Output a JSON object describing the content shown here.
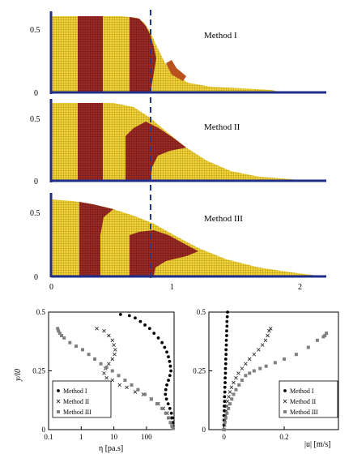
{
  "colors": {
    "yellow": "#f2d43a",
    "red": "#9c2a24",
    "axis": "#1f2d8a",
    "dash": "#1f3a8a",
    "marker": "#000000",
    "square": "#808080",
    "cross": "#333333"
  },
  "top_panels": {
    "labels": [
      "Method I",
      "Method II",
      "Method III"
    ],
    "y_ticks": [
      "0",
      "0.5"
    ],
    "x_ticks": [
      "0",
      "1",
      "2"
    ]
  },
  "chart_data": [
    {
      "type": "scatter",
      "title": "",
      "xlabel": "η [pa.s]",
      "ylabel": "y/l0",
      "xscale": "log",
      "xlim": [
        0.1,
        700
      ],
      "ylim": [
        0,
        0.5
      ],
      "x_ticks": [
        "0.1",
        "1",
        "10",
        "100"
      ],
      "y_ticks": [
        "0",
        "0.25",
        "0.5"
      ],
      "legend_position": "bottom-left",
      "series": [
        {
          "name": "Method I",
          "marker": "circle",
          "points": [
            [
              16,
              0.49
            ],
            [
              30,
              0.485
            ],
            [
              45,
              0.475
            ],
            [
              65,
              0.46
            ],
            [
              90,
              0.445
            ],
            [
              125,
              0.43
            ],
            [
              170,
              0.41
            ],
            [
              230,
              0.39
            ],
            [
              300,
              0.37
            ],
            [
              360,
              0.35
            ],
            [
              420,
              0.33
            ],
            [
              470,
              0.31
            ],
            [
              510,
              0.29
            ],
            [
              540,
              0.27
            ],
            [
              560,
              0.25
            ],
            [
              520,
              0.23
            ],
            [
              470,
              0.21
            ],
            [
              420,
              0.19
            ],
            [
              390,
              0.17
            ],
            [
              380,
              0.15
            ],
            [
              410,
              0.13
            ],
            [
              460,
              0.11
            ],
            [
              520,
              0.09
            ],
            [
              580,
              0.07
            ],
            [
              620,
              0.05
            ],
            [
              640,
              0.03
            ],
            [
              650,
              0.015
            ],
            [
              660,
              0.005
            ]
          ]
        },
        {
          "name": "Method II",
          "marker": "cross",
          "points": [
            [
              3,
              0.43
            ],
            [
              5,
              0.42
            ],
            [
              7,
              0.4
            ],
            [
              9,
              0.38
            ],
            [
              10,
              0.36
            ],
            [
              11,
              0.34
            ],
            [
              10.5,
              0.32
            ],
            [
              9,
              0.3
            ],
            [
              7,
              0.28
            ],
            [
              5.5,
              0.26
            ],
            [
              5,
              0.24
            ],
            [
              6,
              0.22
            ],
            [
              9,
              0.21
            ],
            [
              15,
              0.19
            ],
            [
              25,
              0.18
            ],
            [
              45,
              0.16
            ],
            [
              80,
              0.15
            ],
            [
              140,
              0.13
            ],
            [
              230,
              0.11
            ],
            [
              330,
              0.09
            ],
            [
              430,
              0.07
            ],
            [
              520,
              0.05
            ],
            [
              580,
              0.03
            ],
            [
              620,
              0.015
            ],
            [
              640,
              0.005
            ]
          ]
        },
        {
          "name": "Method III",
          "marker": "square",
          "points": [
            [
              0.19,
              0.43
            ],
            [
              0.2,
              0.42
            ],
            [
              0.22,
              0.41
            ],
            [
              0.25,
              0.4
            ],
            [
              0.3,
              0.39
            ],
            [
              0.45,
              0.37
            ],
            [
              0.7,
              0.355
            ],
            [
              1.1,
              0.34
            ],
            [
              1.7,
              0.32
            ],
            [
              2.6,
              0.3
            ],
            [
              4,
              0.28
            ],
            [
              6,
              0.265
            ],
            [
              9,
              0.25
            ],
            [
              14,
              0.23
            ],
            [
              22,
              0.21
            ],
            [
              35,
              0.19
            ],
            [
              55,
              0.17
            ],
            [
              90,
              0.15
            ],
            [
              140,
              0.13
            ],
            [
              210,
              0.11
            ],
            [
              300,
              0.09
            ],
            [
              390,
              0.07
            ],
            [
              470,
              0.05
            ],
            [
              540,
              0.03
            ],
            [
              600,
              0.015
            ],
            [
              650,
              0.005
            ]
          ]
        }
      ]
    },
    {
      "type": "scatter",
      "title": "",
      "xlabel": "|u| [m/s]",
      "ylabel": "",
      "xlim": [
        -0.05,
        0.38
      ],
      "ylim": [
        0,
        0.5
      ],
      "x_ticks": [
        "0",
        "0.2"
      ],
      "y_ticks": [
        "0",
        "0.25",
        "0.5"
      ],
      "legend_position": "bottom-right",
      "series": [
        {
          "name": "Method I",
          "marker": "circle",
          "points": [
            [
              0.012,
              0.5
            ],
            [
              0.011,
              0.48
            ],
            [
              0.01,
              0.46
            ],
            [
              0.01,
              0.44
            ],
            [
              0.009,
              0.42
            ],
            [
              0.009,
              0.4
            ],
            [
              0.008,
              0.38
            ],
            [
              0.008,
              0.36
            ],
            [
              0.007,
              0.34
            ],
            [
              0.007,
              0.32
            ],
            [
              0.006,
              0.3
            ],
            [
              0.006,
              0.28
            ],
            [
              0.005,
              0.26
            ],
            [
              0.005,
              0.24
            ],
            [
              0.004,
              0.22
            ],
            [
              0.004,
              0.2
            ],
            [
              0.003,
              0.18
            ],
            [
              0.003,
              0.16
            ],
            [
              0.002,
              0.14
            ],
            [
              0.002,
              0.12
            ],
            [
              0.001,
              0.1
            ],
            [
              0.001,
              0.08
            ],
            [
              0.0,
              0.06
            ],
            [
              0.0,
              0.04
            ],
            [
              0.0,
              0.02
            ],
            [
              0.0,
              0.0
            ]
          ]
        },
        {
          "name": "Method II",
          "marker": "cross",
          "points": [
            [
              0.155,
              0.43
            ],
            [
              0.15,
              0.42
            ],
            [
              0.145,
              0.4
            ],
            [
              0.138,
              0.38
            ],
            [
              0.128,
              0.36
            ],
            [
              0.115,
              0.34
            ],
            [
              0.1,
              0.32
            ],
            [
              0.085,
              0.3
            ],
            [
              0.072,
              0.28
            ],
            [
              0.06,
              0.26
            ],
            [
              0.048,
              0.24
            ],
            [
              0.04,
              0.22
            ],
            [
              0.032,
              0.2
            ],
            [
              0.025,
              0.18
            ],
            [
              0.02,
              0.16
            ],
            [
              0.016,
              0.14
            ],
            [
              0.012,
              0.12
            ],
            [
              0.01,
              0.1
            ],
            [
              0.008,
              0.08
            ],
            [
              0.006,
              0.06
            ],
            [
              0.004,
              0.04
            ],
            [
              0.002,
              0.02
            ],
            [
              0.0,
              0.0
            ]
          ]
        },
        {
          "name": "Method III",
          "marker": "square",
          "points": [
            [
              0.34,
              0.41
            ],
            [
              0.335,
              0.4
            ],
            [
              0.33,
              0.395
            ],
            [
              0.31,
              0.38
            ],
            [
              0.28,
              0.35
            ],
            [
              0.24,
              0.32
            ],
            [
              0.2,
              0.3
            ],
            [
              0.17,
              0.285
            ],
            [
              0.14,
              0.27
            ],
            [
              0.12,
              0.26
            ],
            [
              0.1,
              0.25
            ],
            [
              0.085,
              0.24
            ],
            [
              0.072,
              0.23
            ],
            [
              0.06,
              0.21
            ],
            [
              0.05,
              0.19
            ],
            [
              0.04,
              0.17
            ],
            [
              0.032,
              0.15
            ],
            [
              0.026,
              0.13
            ],
            [
              0.02,
              0.11
            ],
            [
              0.015,
              0.09
            ],
            [
              0.01,
              0.07
            ],
            [
              0.006,
              0.05
            ],
            [
              0.003,
              0.03
            ],
            [
              0.0,
              0.0
            ]
          ]
        }
      ]
    }
  ]
}
